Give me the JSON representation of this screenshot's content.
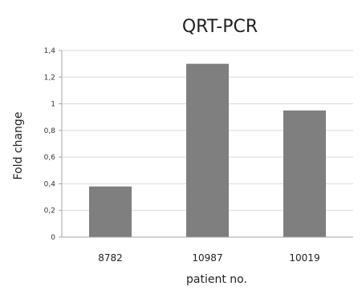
{
  "chart_data": {
    "type": "bar",
    "title": "QRT-PCR",
    "xlabel": "patient no.",
    "ylabel": "Fold change",
    "categories": [
      "8782",
      "10987",
      "10019"
    ],
    "values": [
      0.38,
      1.3,
      0.95
    ],
    "ylim": [
      0,
      1.4
    ],
    "yticks": [
      "0",
      "0,2",
      "0,4",
      "0,6",
      "0,8",
      "1",
      "1,2",
      "1,4"
    ],
    "grid": true,
    "legend": "none",
    "colors": {
      "bar": "#7f7f7f",
      "grid": "#d9d9d9",
      "axis": "#a6a6a6"
    }
  }
}
